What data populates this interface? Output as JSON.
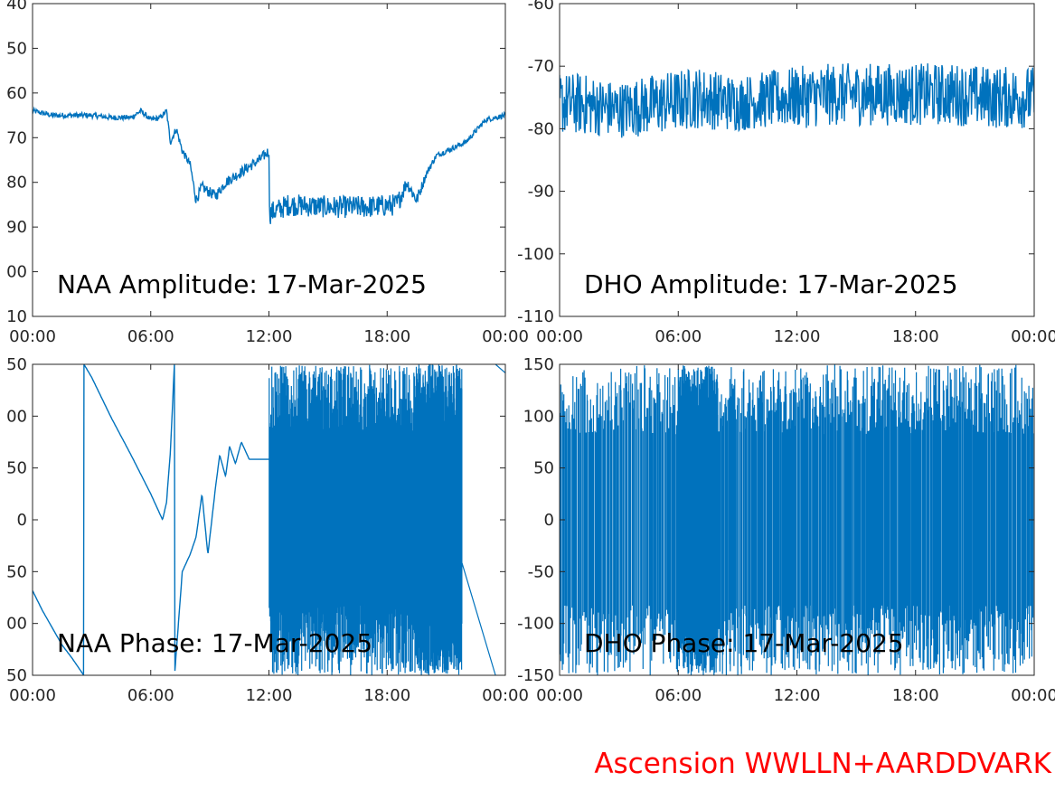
{
  "footer": {
    "text": "Ascension WWLLN+AARDDVARK",
    "color": "#ff0000"
  },
  "colors": {
    "trace": "#0072bd",
    "axes": "#262626",
    "background": "#ffffff"
  },
  "chart_data": [
    {
      "type": "line",
      "title": "NAA Amplitude: 17-Mar-2025",
      "x_ticks": [
        "00:00",
        "06:00",
        "12:00",
        "18:00",
        "00:00"
      ],
      "xlim": [
        0,
        24
      ],
      "y_ticks": [
        "40",
        "50",
        "60",
        "70",
        "80",
        "90",
        "00",
        "10"
      ],
      "ylim": [
        -110,
        -40
      ],
      "grid": false,
      "series": [
        {
          "x": [
            0,
            1,
            2,
            3,
            4,
            5,
            5.5,
            6,
            6.5,
            6.8,
            7.0,
            7.3,
            7.6,
            8.0,
            8.3,
            8.6,
            8.9,
            9.3,
            9.8,
            10.5,
            11.5,
            12.0,
            12.01,
            13,
            15,
            17,
            18.5,
            19.0,
            19.5,
            20,
            20.5,
            21,
            22,
            23,
            24
          ],
          "y": [
            -64,
            -65,
            -65,
            -65,
            -65.5,
            -65.5,
            -64,
            -66,
            -65.5,
            -64,
            -71,
            -68,
            -73,
            -76,
            -84,
            -81,
            -82,
            -83,
            -80,
            -78,
            -75,
            -73,
            -87,
            -85,
            -85.5,
            -85.5,
            -85,
            -80,
            -84,
            -78,
            -74,
            -73,
            -71,
            -66,
            -65
          ],
          "noise": [
            0.6,
            0.6,
            0.6,
            0.6,
            0.6,
            0.6,
            0.6,
            0.6,
            0.6,
            0.6,
            0.8,
            0.8,
            0.8,
            0.8,
            1.2,
            1.2,
            1.2,
            1.2,
            1.2,
            1.2,
            1.2,
            1.2,
            2.5,
            2.5,
            2.5,
            2.5,
            2.5,
            1.5,
            1.5,
            0.8,
            0.6,
            0.6,
            0.6,
            0.6,
            0.6
          ]
        }
      ]
    },
    {
      "type": "line",
      "title": "DHO Amplitude: 17-Mar-2025",
      "x_ticks": [
        "00:00",
        "06:00",
        "12:00",
        "18:00",
        "00:00"
      ],
      "xlim": [
        0,
        24
      ],
      "y_ticks": [
        "-60",
        "-70",
        "-80",
        "-90",
        "-100",
        "-110"
      ],
      "ylim": [
        -110,
        -60
      ],
      "grid": false,
      "series": [
        {
          "x": [
            0,
            1,
            3,
            5,
            7,
            9,
            10,
            12,
            14,
            16,
            18,
            20,
            22,
            24
          ],
          "y": [
            -76,
            -76,
            -77,
            -76,
            -75,
            -76,
            -75.5,
            -75,
            -74.5,
            -74.5,
            -74.5,
            -74.5,
            -75,
            -75
          ],
          "noise": [
            5,
            5,
            4.5,
            5,
            5,
            4.5,
            4.5,
            5,
            5,
            5,
            5,
            5,
            5,
            5
          ]
        }
      ]
    },
    {
      "type": "line",
      "title": "NAA Phase: 17-Mar-2025",
      "x_ticks": [
        "00:00",
        "06:00",
        "12:00",
        "18:00",
        "00:00"
      ],
      "xlim": [
        0,
        24
      ],
      "y_ticks": [
        "50",
        "00",
        "50",
        "0",
        "50",
        "00",
        "50"
      ],
      "ylim": [
        -180,
        180
      ],
      "grid": false,
      "series": [
        {
          "x": [
            0,
            0.5,
            1,
            1.5,
            2.0,
            2.6,
            2.61,
            3,
            4,
            5,
            6,
            6.6,
            6.8,
            7.0,
            7.2,
            7.21,
            7.6,
            8.0,
            8.3,
            8.6,
            8.9,
            9.3,
            9.5,
            9.8,
            10.0,
            10.3,
            10.6,
            11.0,
            11.5,
            12.0
          ],
          "y": [
            -82,
            -105,
            -125,
            -145,
            -160,
            -180,
            180,
            165,
            118,
            75,
            30,
            0,
            20,
            80,
            180,
            -180,
            -60,
            -40,
            -20,
            30,
            -40,
            40,
            75,
            50,
            85,
            65,
            90,
            70,
            70,
            70
          ]
        }
      ],
      "segments": [
        {
          "x0": 12.0,
          "x1": 17.5,
          "density": 230,
          "center": 0,
          "amp": 180
        },
        {
          "x0": 17.5,
          "x1": 19.5,
          "density": 90,
          "center": 0,
          "amp": 180
        },
        {
          "x0": 19.5,
          "x1": 21.8,
          "density": 260,
          "center": 0,
          "amp": 180
        },
        {
          "x0": 21.8,
          "x1": 23.5,
          "x_line": [
            21.8,
            23.5
          ],
          "y_line": [
            -50,
            -180
          ]
        },
        {
          "x0": 23.5,
          "x1": 24,
          "x_line": [
            23.5,
            24
          ],
          "y_line": [
            180,
            170
          ]
        }
      ]
    },
    {
      "type": "line",
      "title": "DHO Phase: 17-Mar-2025",
      "x_ticks": [
        "00:00",
        "06:00",
        "12:00",
        "18:00",
        "00:00"
      ],
      "xlim": [
        0,
        24
      ],
      "y_ticks": [
        "150",
        "100",
        "50",
        "0",
        "-50",
        "-100",
        "-150"
      ],
      "ylim": [
        -180,
        180
      ],
      "grid": false,
      "segments": [
        {
          "x0": 0,
          "x1": 6,
          "density": 120,
          "center": 0,
          "amp": 180
        },
        {
          "x0": 6,
          "x1": 8,
          "density": 200,
          "center": 0,
          "amp": 180
        },
        {
          "x0": 8,
          "x1": 24,
          "density": 380,
          "center": 0,
          "amp": 180
        }
      ]
    }
  ]
}
